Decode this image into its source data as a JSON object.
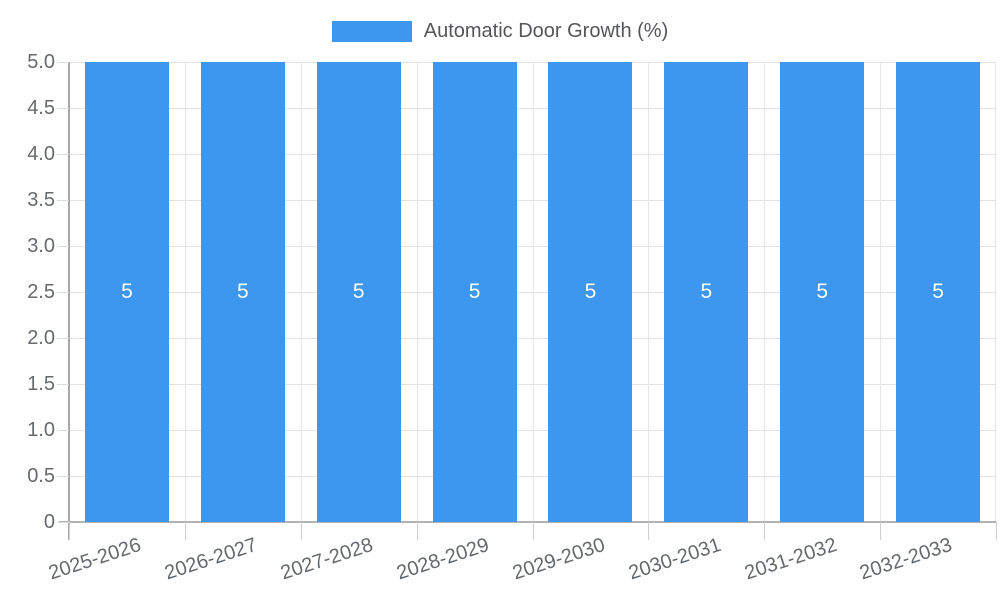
{
  "chart_data": {
    "type": "bar",
    "title": "",
    "categories": [
      "2025-2026",
      "2026-2027",
      "2027-2028",
      "2028-2029",
      "2029-2030",
      "2030-2031",
      "2031-2032",
      "2032-2033"
    ],
    "series": [
      {
        "name": "Automatic Door Growth (%)",
        "values": [
          5,
          5,
          5,
          5,
          5,
          5,
          5,
          5
        ],
        "color": "#3d97ee"
      }
    ],
    "bar_value_labels": [
      "5",
      "5",
      "5",
      "5",
      "5",
      "5",
      "5",
      "5"
    ],
    "ylabel": "",
    "xlabel": "",
    "ylim": [
      0,
      5
    ],
    "ytick_labels": [
      "5.0",
      "4.5",
      "4.0",
      "3.5",
      "3.0",
      "2.5",
      "2.0",
      "1.5",
      "1.0",
      "0.5",
      "0"
    ],
    "grid": "on",
    "legend_position": "top",
    "colors": {
      "bar_fill": "#3d97ee",
      "bar_value_text": "#ffffff",
      "axis_text": "#666a6e",
      "legend_text": "#55565a",
      "gridline": "#e4e4e4",
      "axis_line": "#b3b3b3"
    }
  }
}
